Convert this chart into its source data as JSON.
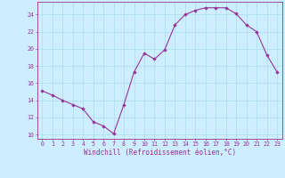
{
  "x": [
    0,
    1,
    2,
    3,
    4,
    5,
    6,
    7,
    8,
    9,
    10,
    11,
    12,
    13,
    14,
    15,
    16,
    17,
    18,
    19,
    20,
    21,
    22,
    23
  ],
  "y": [
    15.1,
    14.6,
    14.0,
    13.5,
    13.0,
    11.5,
    11.0,
    10.1,
    13.5,
    17.3,
    19.5,
    18.8,
    19.9,
    22.8,
    24.0,
    24.5,
    24.8,
    24.8,
    24.8,
    24.1,
    22.8,
    22.0,
    19.3,
    17.3
  ],
  "line_color": "#993399",
  "marker_color": "#993399",
  "bg_color": "#cceeff",
  "grid_color": "#aaddee",
  "ylabel_ticks": [
    10,
    12,
    14,
    16,
    18,
    20,
    22,
    24
  ],
  "xlabel_ticks": [
    0,
    1,
    2,
    3,
    4,
    5,
    6,
    7,
    8,
    9,
    10,
    11,
    12,
    13,
    14,
    15,
    16,
    17,
    18,
    19,
    20,
    21,
    22,
    23
  ],
  "xlabel": "Windchill (Refroidissement éolien,°C)",
  "ylim": [
    9.5,
    25.5
  ],
  "xlim": [
    -0.5,
    23.5
  ],
  "axis_color": "#993399",
  "tick_color": "#993399",
  "label_fontsize": 5.5,
  "tick_fontsize": 4.8
}
